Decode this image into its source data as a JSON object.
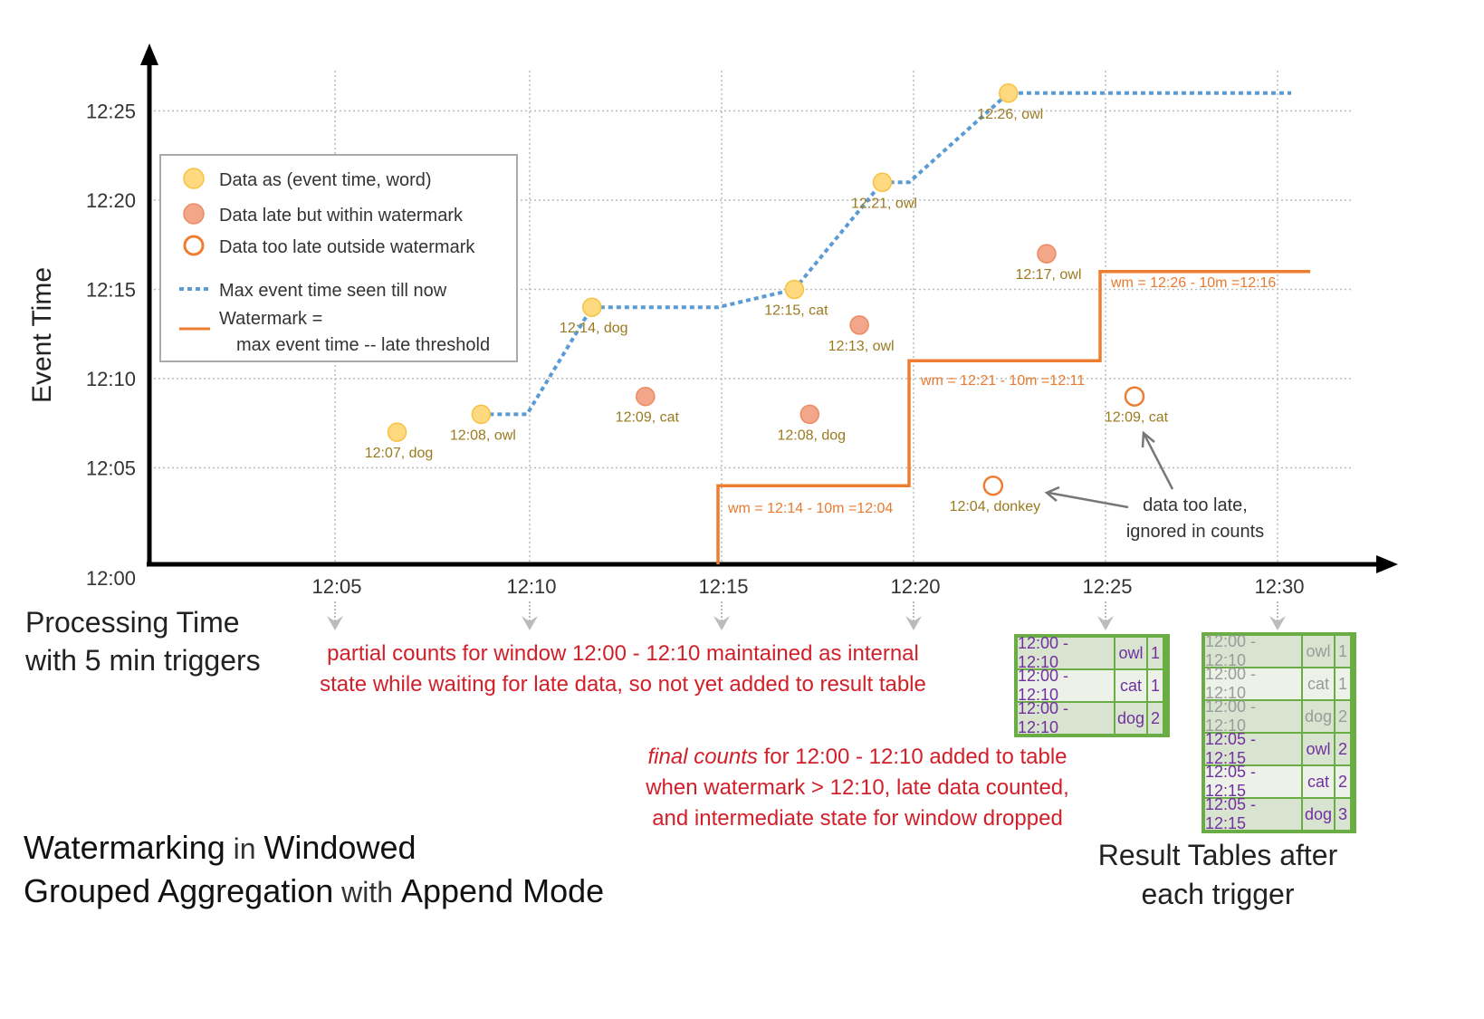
{
  "title": {
    "w1": "Watermarking",
    "w2": " in ",
    "w3": "Windowed",
    "w4": "Grouped Aggregation",
    "w5": " with ",
    "w6": "Append Mode"
  },
  "axes": {
    "y_label": "Event Time",
    "x_label_line1": "Processing Time",
    "x_label_line2": "with 5 min triggers",
    "y_ticks": [
      "12:00",
      "12:05",
      "12:10",
      "12:15",
      "12:20",
      "12:25"
    ],
    "x_ticks": [
      "12:05",
      "12:10",
      "12:15",
      "12:20",
      "12:25",
      "12:30"
    ]
  },
  "legend": {
    "on_time": "Data as (event time, word)",
    "late": "Data late but within watermark",
    "too_late": "Data too late outside watermark",
    "max_line": "Max event time seen till now",
    "wm_line1": "Watermark =",
    "wm_line2": "max event time -- late threshold"
  },
  "colors": {
    "on_time": "#ffd980",
    "late": "#f2a68a",
    "too_late": "#ed7d31",
    "max_line": "#5b9bd5",
    "watermark": "#ed7d31",
    "table_border": "#6aad44",
    "table_text": "#7030a0",
    "annotation": "#d2202a"
  },
  "chart_data": {
    "type": "scatter",
    "x_unit": "minutes after 12:00 (processing time)",
    "y_unit": "minutes after 12:00 (event time)",
    "points": [
      {
        "label": "12:07, dog",
        "kind": "on_time",
        "x": 6.6,
        "y": 7
      },
      {
        "label": "12:08, owl",
        "kind": "on_time",
        "x": 8.8,
        "y": 8
      },
      {
        "label": "12:14, dog",
        "kind": "on_time",
        "x": 11.7,
        "y": 14
      },
      {
        "label": "12:09, cat",
        "kind": "late",
        "x": 13.1,
        "y": 9
      },
      {
        "label": "12:15, cat",
        "kind": "on_time",
        "x": 17.0,
        "y": 15
      },
      {
        "label": "12:08, dog",
        "kind": "late",
        "x": 17.4,
        "y": 8
      },
      {
        "label": "12:13, owl",
        "kind": "late",
        "x": 18.7,
        "y": 13
      },
      {
        "label": "12:21, owl",
        "kind": "on_time",
        "x": 19.3,
        "y": 21
      },
      {
        "label": "12:04, donkey",
        "kind": "too_late",
        "x": 22.2,
        "y": 4
      },
      {
        "label": "12:26, owl",
        "kind": "on_time",
        "x": 22.6,
        "y": 26
      },
      {
        "label": "12:17, owl",
        "kind": "late",
        "x": 23.6,
        "y": 17
      },
      {
        "label": "12:09, cat",
        "kind": "too_late",
        "x": 25.9,
        "y": 9
      }
    ],
    "max_event_line": [
      [
        8.8,
        8
      ],
      [
        10,
        8
      ],
      [
        11.7,
        14
      ],
      [
        15,
        14
      ],
      [
        17,
        15
      ],
      [
        19.3,
        21
      ],
      [
        20,
        21
      ],
      [
        22.6,
        26
      ],
      [
        30,
        26
      ]
    ],
    "watermark_line": [
      [
        15,
        0
      ],
      [
        15,
        4
      ],
      [
        20,
        4
      ],
      [
        20,
        11
      ],
      [
        25,
        11
      ],
      [
        25,
        16
      ],
      [
        30.5,
        16
      ]
    ],
    "watermark_labels": [
      "wm = 12:14 - 10m =12:04",
      "wm = 12:21 - 10m =12:11",
      "wm = 12:26 - 10m =12:16"
    ]
  },
  "annotations": {
    "partial_1": "partial counts for window 12:00 - 12:10 maintained as internal",
    "partial_2": "state while waiting for late data, so not yet added  to result table",
    "final_em": "final counts",
    "final_1": " for 12:00 - 12:10 added to table",
    "final_2": "when watermark > 12:10, late data counted,",
    "final_3": "and intermediate state for window dropped",
    "too_late_1": "data too late,",
    "too_late_2": "ignored in counts"
  },
  "result_tables": {
    "caption_1": "Result Tables after",
    "caption_2": "each trigger",
    "after_1225": [
      [
        "12:00 - 12:10",
        "owl",
        "1"
      ],
      [
        "12:00 - 12:10",
        "cat",
        "1"
      ],
      [
        "12:00 - 12:10",
        "dog",
        "2"
      ]
    ],
    "after_1230_old": [
      [
        "12:00 - 12:10",
        "owl",
        "1"
      ],
      [
        "12:00 - 12:10",
        "cat",
        "1"
      ],
      [
        "12:00 - 12:10",
        "dog",
        "2"
      ]
    ],
    "after_1230_new": [
      [
        "12:05 - 12:15",
        "owl",
        "2"
      ],
      [
        "12:05 - 12:15",
        "cat",
        "2"
      ],
      [
        "12:05 - 12:15",
        "dog",
        "3"
      ]
    ]
  }
}
